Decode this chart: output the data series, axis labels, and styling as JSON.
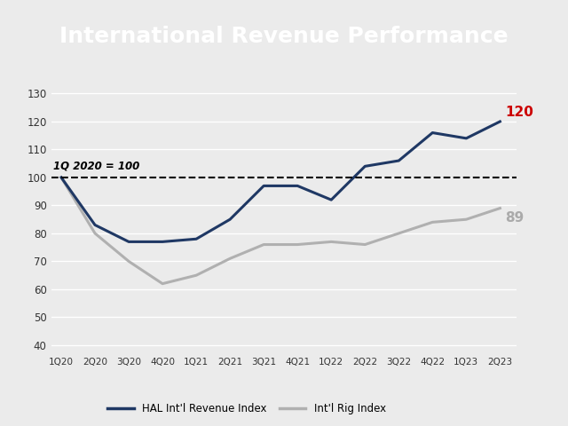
{
  "title": "International Revenue Performance",
  "title_bg": "#1a1a1a",
  "title_color": "#ffffff",
  "title_fontsize": 18,
  "categories": [
    "1Q20",
    "2Q20",
    "3Q20",
    "4Q20",
    "1Q21",
    "2Q21",
    "3Q21",
    "4Q21",
    "1Q22",
    "2Q22",
    "3Q22",
    "4Q22",
    "1Q23",
    "2Q23"
  ],
  "hal_data": [
    100,
    83,
    77,
    77,
    78,
    85,
    97,
    97,
    92,
    104,
    106,
    116,
    114,
    120
  ],
  "rig_data": [
    100,
    80,
    70,
    62,
    65,
    71,
    76,
    76,
    77,
    76,
    80,
    84,
    85,
    89
  ],
  "hal_color": "#1f3864",
  "rig_color": "#b0b0b0",
  "hal_label": "HAL Int'l Revenue Index",
  "rig_label": "Int'l Rig Index",
  "reference_line_y": 100,
  "reference_label": "1Q 2020 = 100",
  "annotation_hal_value": 120,
  "annotation_hal_color": "#cc0000",
  "annotation_rig_value": 89,
  "annotation_rig_color": "#aaaaaa",
  "ylim": [
    37,
    133
  ],
  "yticks": [
    40,
    50,
    60,
    70,
    80,
    90,
    100,
    110,
    120,
    130
  ],
  "bg_color": "#ebebeb",
  "plot_bg": "#ebebeb",
  "linewidth": 2.2
}
